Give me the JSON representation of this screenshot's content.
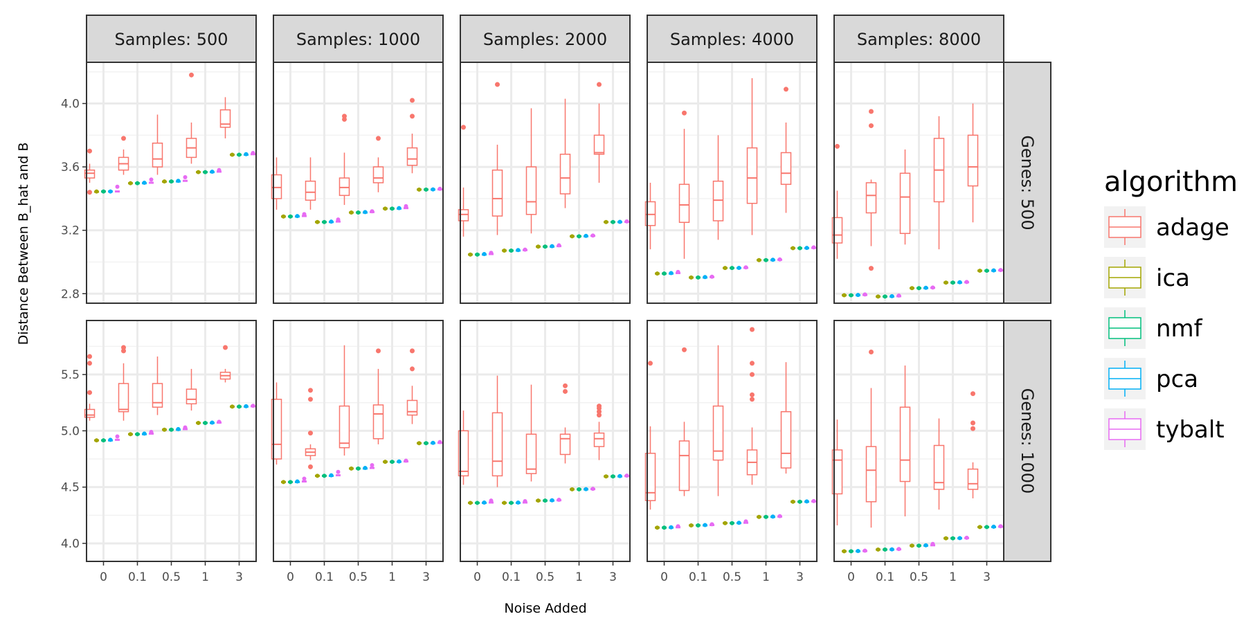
{
  "chart_data": {
    "type": "boxplot",
    "facet_cols": [
      "Samples: 500",
      "Samples: 1000",
      "Samples: 2000",
      "Samples: 4000",
      "Samples: 8000"
    ],
    "facet_rows": [
      "Genes: 500",
      "Genes: 1000"
    ],
    "xlabel": "Noise Added",
    "ylabel": "Distance Between B_hat and B",
    "x_categories": [
      "0",
      "0.1",
      "0.5",
      "1",
      "3"
    ],
    "row_axes": [
      {
        "ylim": [
          2.74,
          4.26
        ],
        "ticks": [
          2.8,
          3.2,
          3.6,
          4.0
        ],
        "tick_labels": [
          "2.8",
          "3.2",
          "3.6",
          "4.0"
        ]
      },
      {
        "ylim": [
          3.84,
          5.98
        ],
        "ticks": [
          4.0,
          4.5,
          5.0,
          5.5
        ],
        "tick_labels": [
          "4.0",
          "4.5",
          "5.0",
          "5.5"
        ]
      }
    ],
    "legend": {
      "title": "algorithm",
      "position": "right",
      "entries": [
        {
          "name": "adage",
          "color": "#F8766D"
        },
        {
          "name": "ica",
          "color": "#A3A500"
        },
        {
          "name": "nmf",
          "color": "#00BF7D"
        },
        {
          "name": "pca",
          "color": "#00B0F6"
        },
        {
          "name": "tybalt",
          "color": "#E76BF3"
        }
      ]
    },
    "adage": [
      [
        [
          [
            3.5,
            3.53,
            3.56,
            3.58,
            3.62,
            [
              3.7,
              3.44
            ]
          ],
          [
            3.55,
            3.58,
            3.62,
            3.66,
            3.71,
            [
              3.78
            ]
          ],
          [
            3.55,
            3.6,
            3.65,
            3.75,
            3.93,
            []
          ],
          [
            3.62,
            3.66,
            3.72,
            3.78,
            3.88,
            [
              4.18
            ]
          ],
          [
            3.78,
            3.85,
            3.87,
            3.96,
            4.04,
            []
          ]
        ],
        [
          [
            3.33,
            3.4,
            3.47,
            3.55,
            3.66,
            []
          ],
          [
            3.33,
            3.39,
            3.44,
            3.51,
            3.66,
            []
          ],
          [
            3.36,
            3.42,
            3.47,
            3.53,
            3.69,
            [
              3.9,
              3.92
            ]
          ],
          [
            3.44,
            3.5,
            3.53,
            3.6,
            3.66,
            [
              3.78
            ]
          ],
          [
            3.56,
            3.61,
            3.65,
            3.72,
            3.81,
            [
              3.92,
              4.02
            ]
          ]
        ],
        [
          [
            3.16,
            3.26,
            3.3,
            3.33,
            3.47,
            [
              3.85
            ]
          ],
          [
            3.17,
            3.29,
            3.4,
            3.58,
            3.74,
            [
              4.12
            ]
          ],
          [
            3.18,
            3.3,
            3.38,
            3.6,
            3.97,
            []
          ],
          [
            3.34,
            3.43,
            3.53,
            3.68,
            4.03,
            []
          ],
          [
            3.5,
            3.68,
            3.69,
            3.8,
            4.0,
            [
              4.12
            ]
          ]
        ],
        [
          [
            3.08,
            3.23,
            3.3,
            3.38,
            3.5,
            []
          ],
          [
            3.02,
            3.25,
            3.36,
            3.49,
            3.84,
            [
              3.94
            ]
          ],
          [
            3.14,
            3.26,
            3.39,
            3.51,
            3.8,
            []
          ],
          [
            3.17,
            3.37,
            3.53,
            3.72,
            4.16,
            []
          ],
          [
            3.31,
            3.49,
            3.56,
            3.69,
            3.88,
            [
              4.09
            ]
          ]
        ],
        [
          [
            3.02,
            3.12,
            3.17,
            3.28,
            3.45,
            [
              3.73
            ]
          ],
          [
            3.1,
            3.31,
            3.42,
            3.5,
            3.52,
            [
              2.96,
              3.86,
              3.95
            ]
          ],
          [
            3.11,
            3.18,
            3.41,
            3.56,
            3.71,
            []
          ],
          [
            3.08,
            3.38,
            3.58,
            3.78,
            3.92,
            []
          ],
          [
            3.25,
            3.48,
            3.6,
            3.8,
            4.0,
            []
          ]
        ]
      ],
      [
        [
          [
            5.09,
            5.12,
            5.14,
            5.19,
            5.24,
            [
              5.34,
              5.6,
              5.66
            ]
          ],
          [
            5.09,
            5.17,
            5.19,
            5.42,
            5.6,
            [
              5.71,
              5.74
            ]
          ],
          [
            5.14,
            5.21,
            5.25,
            5.42,
            5.66,
            []
          ],
          [
            5.18,
            5.24,
            5.28,
            5.37,
            5.55,
            []
          ],
          [
            5.43,
            5.46,
            5.49,
            5.52,
            5.55,
            [
              5.74
            ]
          ]
        ],
        [
          [
            4.7,
            4.75,
            4.88,
            5.28,
            5.43,
            []
          ],
          [
            4.74,
            4.78,
            4.81,
            4.84,
            4.88,
            [
              4.68,
              4.98,
              5.28,
              5.36
            ]
          ],
          [
            4.78,
            4.85,
            4.89,
            5.22,
            5.76,
            []
          ],
          [
            4.88,
            4.93,
            5.15,
            5.23,
            5.55,
            [
              5.71
            ]
          ],
          [
            5.06,
            5.14,
            5.17,
            5.27,
            5.4,
            [
              5.55,
              5.71
            ]
          ]
        ],
        [
          [
            4.52,
            4.6,
            4.64,
            5.0,
            5.18,
            []
          ],
          [
            4.5,
            4.6,
            4.73,
            5.16,
            5.49,
            []
          ],
          [
            4.55,
            4.62,
            4.66,
            4.97,
            5.41,
            []
          ],
          [
            4.71,
            4.79,
            4.93,
            4.97,
            5.03,
            [
              5.35,
              5.4
            ]
          ],
          [
            4.74,
            4.86,
            4.93,
            4.98,
            5.08,
            [
              5.14,
              5.17,
              5.2,
              5.22
            ]
          ]
        ],
        [
          [
            4.3,
            4.38,
            4.45,
            4.8,
            5.04,
            [
              5.6
            ]
          ],
          [
            4.42,
            4.47,
            4.78,
            4.91,
            5.08,
            [
              5.72
            ]
          ],
          [
            4.42,
            4.74,
            4.82,
            5.22,
            5.76,
            []
          ],
          [
            4.52,
            4.61,
            4.72,
            4.83,
            5.03,
            [
              5.28,
              5.32,
              5.5,
              5.6,
              5.9
            ]
          ],
          [
            4.62,
            4.67,
            4.8,
            5.17,
            5.61,
            []
          ]
        ],
        [
          [
            4.16,
            4.44,
            4.74,
            4.83,
            5.1,
            []
          ],
          [
            4.14,
            4.37,
            4.65,
            4.86,
            5.38,
            [
              5.7
            ]
          ],
          [
            4.24,
            4.55,
            4.74,
            5.21,
            5.58,
            []
          ],
          [
            4.3,
            4.48,
            4.54,
            4.87,
            5.11,
            []
          ],
          [
            4.4,
            4.48,
            4.53,
            4.66,
            4.72,
            [
              5.02,
              5.07,
              5.33
            ]
          ]
        ]
      ]
    ],
    "others": [
      [
        [
          [
            3.443,
            3.445,
            3.445,
            3.445,
            3.475
          ],
          [
            3.497,
            3.497,
            3.497,
            3.5,
            3.52
          ],
          [
            3.507,
            3.508,
            3.508,
            3.512,
            3.535
          ],
          [
            3.567,
            3.567,
            3.567,
            3.57,
            3.58
          ],
          [
            3.677,
            3.677,
            3.677,
            3.68,
            3.688
          ]
        ],
        [
          [
            3.287,
            3.287,
            3.287,
            3.29,
            3.302
          ],
          [
            3.252,
            3.252,
            3.252,
            3.255,
            3.268
          ],
          [
            3.312,
            3.312,
            3.312,
            3.315,
            3.32
          ],
          [
            3.337,
            3.337,
            3.337,
            3.34,
            3.352
          ],
          [
            3.457,
            3.457,
            3.457,
            3.458,
            3.462
          ]
        ],
        [
          [
            3.047,
            3.047,
            3.047,
            3.05,
            3.058
          ],
          [
            3.072,
            3.072,
            3.072,
            3.075,
            3.078
          ],
          [
            3.097,
            3.097,
            3.097,
            3.1,
            3.105
          ],
          [
            3.162,
            3.162,
            3.162,
            3.165,
            3.167
          ],
          [
            3.252,
            3.252,
            3.252,
            3.253,
            3.256
          ]
        ],
        [
          [
            2.927,
            2.927,
            2.927,
            2.93,
            2.937
          ],
          [
            2.902,
            2.902,
            2.902,
            2.905,
            2.907
          ],
          [
            2.962,
            2.962,
            2.962,
            2.963,
            2.966
          ],
          [
            3.012,
            3.012,
            3.012,
            3.014,
            3.016
          ],
          [
            3.087,
            3.087,
            3.087,
            3.089,
            3.092
          ]
        ],
        [
          [
            2.79,
            2.79,
            2.79,
            2.792,
            2.795
          ],
          [
            2.782,
            2.782,
            2.782,
            2.784,
            2.788
          ],
          [
            2.835,
            2.835,
            2.835,
            2.837,
            2.839
          ],
          [
            2.87,
            2.87,
            2.87,
            2.872,
            2.874
          ],
          [
            2.945,
            2.945,
            2.945,
            2.947,
            2.949
          ]
        ]
      ],
      [
        [
          [
            4.915,
            4.915,
            4.915,
            4.92,
            4.95
          ],
          [
            4.97,
            4.97,
            4.97,
            4.975,
            4.99
          ],
          [
            5.01,
            5.01,
            5.01,
            5.015,
            5.03
          ],
          [
            5.07,
            5.07,
            5.07,
            5.073,
            5.08
          ],
          [
            5.215,
            5.215,
            5.215,
            5.218,
            5.222
          ]
        ],
        [
          [
            4.545,
            4.545,
            4.545,
            4.55,
            4.575
          ],
          [
            4.6,
            4.6,
            4.6,
            4.605,
            4.635
          ],
          [
            4.665,
            4.665,
            4.665,
            4.67,
            4.695
          ],
          [
            4.725,
            4.725,
            4.725,
            4.728,
            4.735
          ],
          [
            4.89,
            4.89,
            4.89,
            4.893,
            4.9
          ]
        ],
        [
          [
            4.36,
            4.36,
            4.36,
            4.363,
            4.38
          ],
          [
            4.36,
            4.36,
            4.36,
            4.363,
            4.375
          ],
          [
            4.38,
            4.38,
            4.38,
            4.383,
            4.387
          ],
          [
            4.48,
            4.48,
            4.48,
            4.482,
            4.485
          ],
          [
            4.595,
            4.595,
            4.595,
            4.598,
            4.602
          ]
        ],
        [
          [
            4.14,
            4.14,
            4.14,
            4.143,
            4.152
          ],
          [
            4.16,
            4.16,
            4.16,
            4.163,
            4.17
          ],
          [
            4.18,
            4.18,
            4.18,
            4.183,
            4.195
          ],
          [
            4.235,
            4.235,
            4.235,
            4.238,
            4.242
          ],
          [
            4.37,
            4.37,
            4.37,
            4.373,
            4.376
          ]
        ],
        [
          [
            3.93,
            3.93,
            3.93,
            3.932,
            3.935
          ],
          [
            3.945,
            3.945,
            3.945,
            3.947,
            3.95
          ],
          [
            3.98,
            3.98,
            3.98,
            3.983,
            3.995
          ],
          [
            4.045,
            4.045,
            4.045,
            4.047,
            4.05
          ],
          [
            4.145,
            4.145,
            4.145,
            4.148,
            4.152
          ]
        ]
      ]
    ]
  }
}
